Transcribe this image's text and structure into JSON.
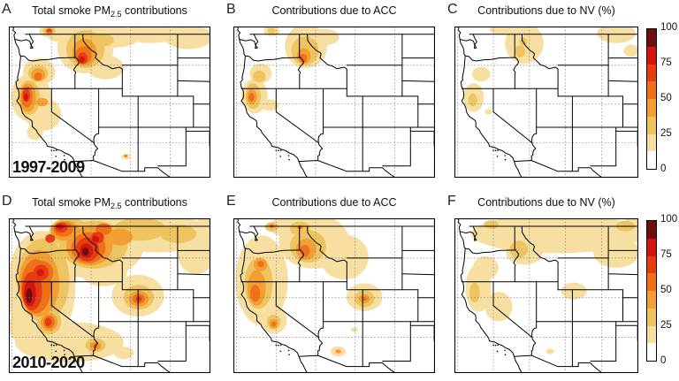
{
  "chart_data": {
    "type": "heatmap",
    "subtype": "filled_contour_maps_grid_2x3",
    "region": "Western United States",
    "value_unit": "%",
    "colorbar": {
      "min": 0,
      "max": 100,
      "tick_labels": [
        "100",
        "75",
        "50",
        "25",
        "0"
      ],
      "tick_values": [
        100,
        75,
        50,
        25,
        0
      ],
      "levels": [
        0,
        12.5,
        25,
        37.5,
        50,
        62.5,
        75,
        87.5,
        100
      ],
      "segment_colors_low_to_high": [
        "#ffffff",
        "#f7dfa2",
        "#edc45f",
        "#f29e33",
        "#ee7019",
        "#e73c12",
        "#d4150d",
        "#6e0d10"
      ]
    },
    "geo": {
      "lon_range": [
        -125.4,
        -99.9
      ],
      "lat_range": [
        30.5,
        50.0
      ],
      "graticule_lon": [
        -125,
        -120,
        -115,
        -110,
        -105,
        -100
      ],
      "graticule_lat": [
        45,
        40,
        35
      ],
      "grid_style": "dotted"
    },
    "hotspot_format": "[x_frac, y_frac, rx_frac, ry_frac, intensity_level_1to8]",
    "panels": [
      {
        "letter": "A",
        "title_prefix": "Total smoke PM",
        "title_sub": "2.5",
        "title_suffix": " contributions",
        "corner_label": "1997-2009",
        "hotspots": [
          [
            0.11,
            0.47,
            0.1,
            0.16,
            2
          ],
          [
            0.15,
            0.3,
            0.08,
            0.09,
            2
          ],
          [
            0.17,
            0.58,
            0.09,
            0.11,
            2
          ],
          [
            0.38,
            0.14,
            0.14,
            0.17,
            2
          ],
          [
            0.29,
            0.04,
            0.11,
            0.07,
            2
          ],
          [
            0.52,
            0.07,
            0.13,
            0.07,
            2
          ],
          [
            0.7,
            0.05,
            0.14,
            0.06,
            2
          ],
          [
            0.89,
            0.07,
            0.12,
            0.08,
            2
          ],
          [
            0.48,
            0.27,
            0.09,
            0.08,
            2
          ],
          [
            0.2,
            0.03,
            0.05,
            0.04,
            2
          ],
          [
            0.58,
            0.86,
            0.022,
            0.02,
            2
          ],
          [
            0.13,
            0.7,
            0.04,
            0.05,
            2
          ],
          [
            0.1,
            0.47,
            0.055,
            0.115,
            3
          ],
          [
            0.145,
            0.31,
            0.05,
            0.055,
            3
          ],
          [
            0.38,
            0.15,
            0.095,
            0.125,
            3
          ],
          [
            0.47,
            0.09,
            0.05,
            0.04,
            3
          ],
          [
            0.2,
            0.03,
            0.032,
            0.028,
            3
          ],
          [
            0.095,
            0.47,
            0.04,
            0.095,
            4
          ],
          [
            0.145,
            0.32,
            0.035,
            0.042,
            4
          ],
          [
            0.375,
            0.17,
            0.06,
            0.09,
            4
          ],
          [
            0.165,
            0.5,
            0.03,
            0.028,
            4
          ],
          [
            0.09,
            0.465,
            0.028,
            0.07,
            5
          ],
          [
            0.145,
            0.33,
            0.02,
            0.026,
            5
          ],
          [
            0.37,
            0.19,
            0.04,
            0.058,
            5
          ],
          [
            0.2,
            0.03,
            0.018,
            0.016,
            5
          ],
          [
            0.58,
            0.857,
            0.008,
            0.008,
            5
          ],
          [
            0.087,
            0.455,
            0.018,
            0.042,
            6
          ],
          [
            0.366,
            0.21,
            0.024,
            0.038,
            6
          ],
          [
            0.2,
            0.025,
            0.011,
            0.011,
            6
          ],
          [
            0.084,
            0.468,
            0.011,
            0.026,
            7
          ],
          [
            0.363,
            0.218,
            0.013,
            0.02,
            7
          ]
        ]
      },
      {
        "letter": "B",
        "title_prefix": "Contributions due to ACC",
        "title_sub": "",
        "title_suffix": "",
        "corner_label": "",
        "hotspots": [
          [
            0.105,
            0.46,
            0.065,
            0.115,
            2
          ],
          [
            0.135,
            0.31,
            0.055,
            0.065,
            2
          ],
          [
            0.36,
            0.13,
            0.105,
            0.145,
            2
          ],
          [
            0.45,
            0.07,
            0.075,
            0.055,
            2
          ],
          [
            0.19,
            0.03,
            0.04,
            0.033,
            2
          ],
          [
            0.18,
            0.52,
            0.045,
            0.038,
            2
          ],
          [
            0.098,
            0.46,
            0.038,
            0.085,
            3
          ],
          [
            0.128,
            0.33,
            0.032,
            0.038,
            3
          ],
          [
            0.355,
            0.16,
            0.068,
            0.095,
            3
          ],
          [
            0.19,
            0.028,
            0.02,
            0.018,
            3
          ],
          [
            0.092,
            0.465,
            0.024,
            0.05,
            4
          ],
          [
            0.35,
            0.195,
            0.034,
            0.052,
            4
          ],
          [
            0.09,
            0.468,
            0.014,
            0.028,
            5
          ],
          [
            0.346,
            0.21,
            0.019,
            0.03,
            5
          ]
        ]
      },
      {
        "letter": "C",
        "title_prefix": "Contributions due to NV (%)",
        "title_sub": "",
        "title_suffix": "",
        "corner_label": "",
        "hotspots": [
          [
            0.105,
            0.47,
            0.055,
            0.095,
            2
          ],
          [
            0.145,
            0.315,
            0.05,
            0.048,
            2
          ],
          [
            0.38,
            0.11,
            0.105,
            0.135,
            2
          ],
          [
            0.25,
            0.02,
            0.06,
            0.03,
            2
          ],
          [
            0.88,
            0.045,
            0.105,
            0.065,
            2
          ],
          [
            0.185,
            0.565,
            0.02,
            0.018,
            2
          ],
          [
            0.96,
            0.16,
            0.04,
            0.04,
            2
          ],
          [
            0.1,
            0.485,
            0.024,
            0.042,
            3
          ],
          [
            0.357,
            0.165,
            0.028,
            0.04,
            3
          ],
          [
            0.375,
            0.1,
            0.02,
            0.028,
            3
          ]
        ]
      },
      {
        "letter": "D",
        "title_prefix": "Total smoke PM",
        "title_sub": "2.5",
        "title_suffix": " contributions",
        "corner_label": "2010-2020",
        "hotspots": [
          [
            0.16,
            0.45,
            0.17,
            0.37,
            2
          ],
          [
            0.42,
            0.18,
            0.25,
            0.21,
            2
          ],
          [
            0.74,
            0.1,
            0.27,
            0.12,
            2
          ],
          [
            0.93,
            0.24,
            0.09,
            0.12,
            2
          ],
          [
            0.64,
            0.5,
            0.13,
            0.135,
            2
          ],
          [
            0.3,
            0.8,
            0.27,
            0.13,
            2
          ],
          [
            0.57,
            0.87,
            0.05,
            0.04,
            2
          ],
          [
            0.06,
            0.7,
            0.06,
            0.1,
            2
          ],
          [
            0.47,
            0.33,
            0.12,
            0.11,
            2
          ],
          [
            0.99,
            0.08,
            0.07,
            0.1,
            2
          ],
          [
            0.17,
            0.4,
            0.13,
            0.27,
            3
          ],
          [
            0.42,
            0.17,
            0.17,
            0.155,
            3
          ],
          [
            0.65,
            0.07,
            0.13,
            0.075,
            3
          ],
          [
            0.645,
            0.51,
            0.075,
            0.08,
            3
          ],
          [
            0.3,
            0.09,
            0.1,
            0.095,
            3
          ],
          [
            0.43,
            0.82,
            0.05,
            0.045,
            3
          ],
          [
            0.2,
            0.67,
            0.06,
            0.08,
            3
          ],
          [
            0.84,
            0.1,
            0.09,
            0.06,
            3
          ],
          [
            0.15,
            0.42,
            0.1,
            0.215,
            4
          ],
          [
            0.4,
            0.18,
            0.115,
            0.125,
            4
          ],
          [
            0.28,
            0.08,
            0.07,
            0.065,
            4
          ],
          [
            0.55,
            0.12,
            0.065,
            0.055,
            4
          ],
          [
            0.645,
            0.52,
            0.05,
            0.05,
            4
          ],
          [
            0.43,
            0.825,
            0.028,
            0.028,
            4
          ],
          [
            0.2,
            0.67,
            0.042,
            0.058,
            4
          ],
          [
            0.135,
            0.44,
            0.075,
            0.175,
            5
          ],
          [
            0.165,
            0.35,
            0.055,
            0.075,
            5
          ],
          [
            0.395,
            0.19,
            0.085,
            0.1,
            5
          ],
          [
            0.27,
            0.07,
            0.05,
            0.048,
            5
          ],
          [
            0.47,
            0.07,
            0.04,
            0.038,
            5
          ],
          [
            0.645,
            0.52,
            0.03,
            0.032,
            5
          ],
          [
            0.2,
            0.67,
            0.028,
            0.042,
            5
          ],
          [
            0.43,
            0.825,
            0.013,
            0.013,
            5
          ],
          [
            0.115,
            0.47,
            0.05,
            0.125,
            6
          ],
          [
            0.16,
            0.35,
            0.038,
            0.05,
            6
          ],
          [
            0.39,
            0.2,
            0.058,
            0.078,
            6
          ],
          [
            0.44,
            0.125,
            0.032,
            0.038,
            6
          ],
          [
            0.26,
            0.06,
            0.032,
            0.032,
            6
          ],
          [
            0.205,
            0.13,
            0.024,
            0.028,
            6
          ],
          [
            0.645,
            0.52,
            0.014,
            0.017,
            6
          ],
          [
            0.196,
            0.67,
            0.017,
            0.027,
            6
          ],
          [
            0.105,
            0.485,
            0.03,
            0.085,
            7
          ],
          [
            0.385,
            0.21,
            0.033,
            0.048,
            7
          ],
          [
            0.43,
            0.135,
            0.018,
            0.022,
            7
          ],
          [
            0.255,
            0.055,
            0.018,
            0.018,
            7
          ],
          [
            0.157,
            0.35,
            0.018,
            0.023,
            7
          ],
          [
            0.1,
            0.5,
            0.016,
            0.048,
            8
          ],
          [
            0.38,
            0.215,
            0.016,
            0.026,
            8
          ]
        ]
      },
      {
        "letter": "E",
        "title_prefix": "Contributions due to ACC",
        "title_sub": "",
        "title_suffix": "",
        "corner_label": "",
        "hotspots": [
          [
            0.14,
            0.4,
            0.13,
            0.29,
            2
          ],
          [
            0.4,
            0.15,
            0.175,
            0.175,
            2
          ],
          [
            0.55,
            0.25,
            0.12,
            0.145,
            2
          ],
          [
            0.3,
            0.055,
            0.12,
            0.075,
            2
          ],
          [
            0.65,
            0.51,
            0.09,
            0.09,
            2
          ],
          [
            0.2,
            0.66,
            0.065,
            0.085,
            2
          ],
          [
            0.52,
            0.86,
            0.038,
            0.032,
            2
          ],
          [
            0.6,
            0.72,
            0.018,
            0.016,
            2
          ],
          [
            0.125,
            0.42,
            0.07,
            0.165,
            3
          ],
          [
            0.37,
            0.18,
            0.09,
            0.105,
            3
          ],
          [
            0.33,
            0.065,
            0.05,
            0.045,
            3
          ],
          [
            0.19,
            0.055,
            0.033,
            0.03,
            3
          ],
          [
            0.65,
            0.52,
            0.05,
            0.053,
            3
          ],
          [
            0.2,
            0.67,
            0.034,
            0.048,
            3
          ],
          [
            0.115,
            0.45,
            0.045,
            0.115,
            4
          ],
          [
            0.135,
            0.3,
            0.034,
            0.042,
            4
          ],
          [
            0.36,
            0.2,
            0.05,
            0.068,
            4
          ],
          [
            0.65,
            0.52,
            0.027,
            0.029,
            4
          ],
          [
            0.2,
            0.68,
            0.021,
            0.03,
            4
          ],
          [
            0.52,
            0.86,
            0.014,
            0.013,
            4
          ],
          [
            0.108,
            0.485,
            0.024,
            0.055,
            5
          ],
          [
            0.136,
            0.295,
            0.016,
            0.02,
            5
          ],
          [
            0.355,
            0.21,
            0.024,
            0.038,
            5
          ],
          [
            0.19,
            0.05,
            0.012,
            0.012,
            5
          ],
          [
            0.33,
            0.058,
            0.012,
            0.012,
            5
          ],
          [
            0.65,
            0.52,
            0.011,
            0.012,
            5
          ],
          [
            0.2,
            0.683,
            0.011,
            0.016,
            5
          ]
        ]
      },
      {
        "letter": "F",
        "title_prefix": "Contributions due to NV (%)",
        "title_sub": "",
        "title_suffix": "",
        "corner_label": "",
        "hotspots": [
          [
            0.56,
            0.1,
            0.47,
            0.125,
            2
          ],
          [
            0.88,
            0.22,
            0.125,
            0.1,
            2
          ],
          [
            0.13,
            0.45,
            0.07,
            0.155,
            2
          ],
          [
            0.17,
            0.32,
            0.07,
            0.075,
            2
          ],
          [
            0.24,
            0.57,
            0.075,
            0.095,
            2
          ],
          [
            0.38,
            0.22,
            0.1,
            0.08,
            2
          ],
          [
            0.65,
            0.47,
            0.07,
            0.055,
            2
          ],
          [
            0.52,
            0.86,
            0.022,
            0.018,
            2
          ],
          [
            0.97,
            0.05,
            0.05,
            0.06,
            2
          ],
          [
            0.35,
            0.2,
            0.05,
            0.055,
            3
          ],
          [
            0.11,
            0.48,
            0.028,
            0.065,
            3
          ],
          [
            0.2,
            0.04,
            0.04,
            0.028,
            3
          ],
          [
            0.93,
            0.05,
            0.05,
            0.035,
            3
          ]
        ]
      }
    ]
  }
}
